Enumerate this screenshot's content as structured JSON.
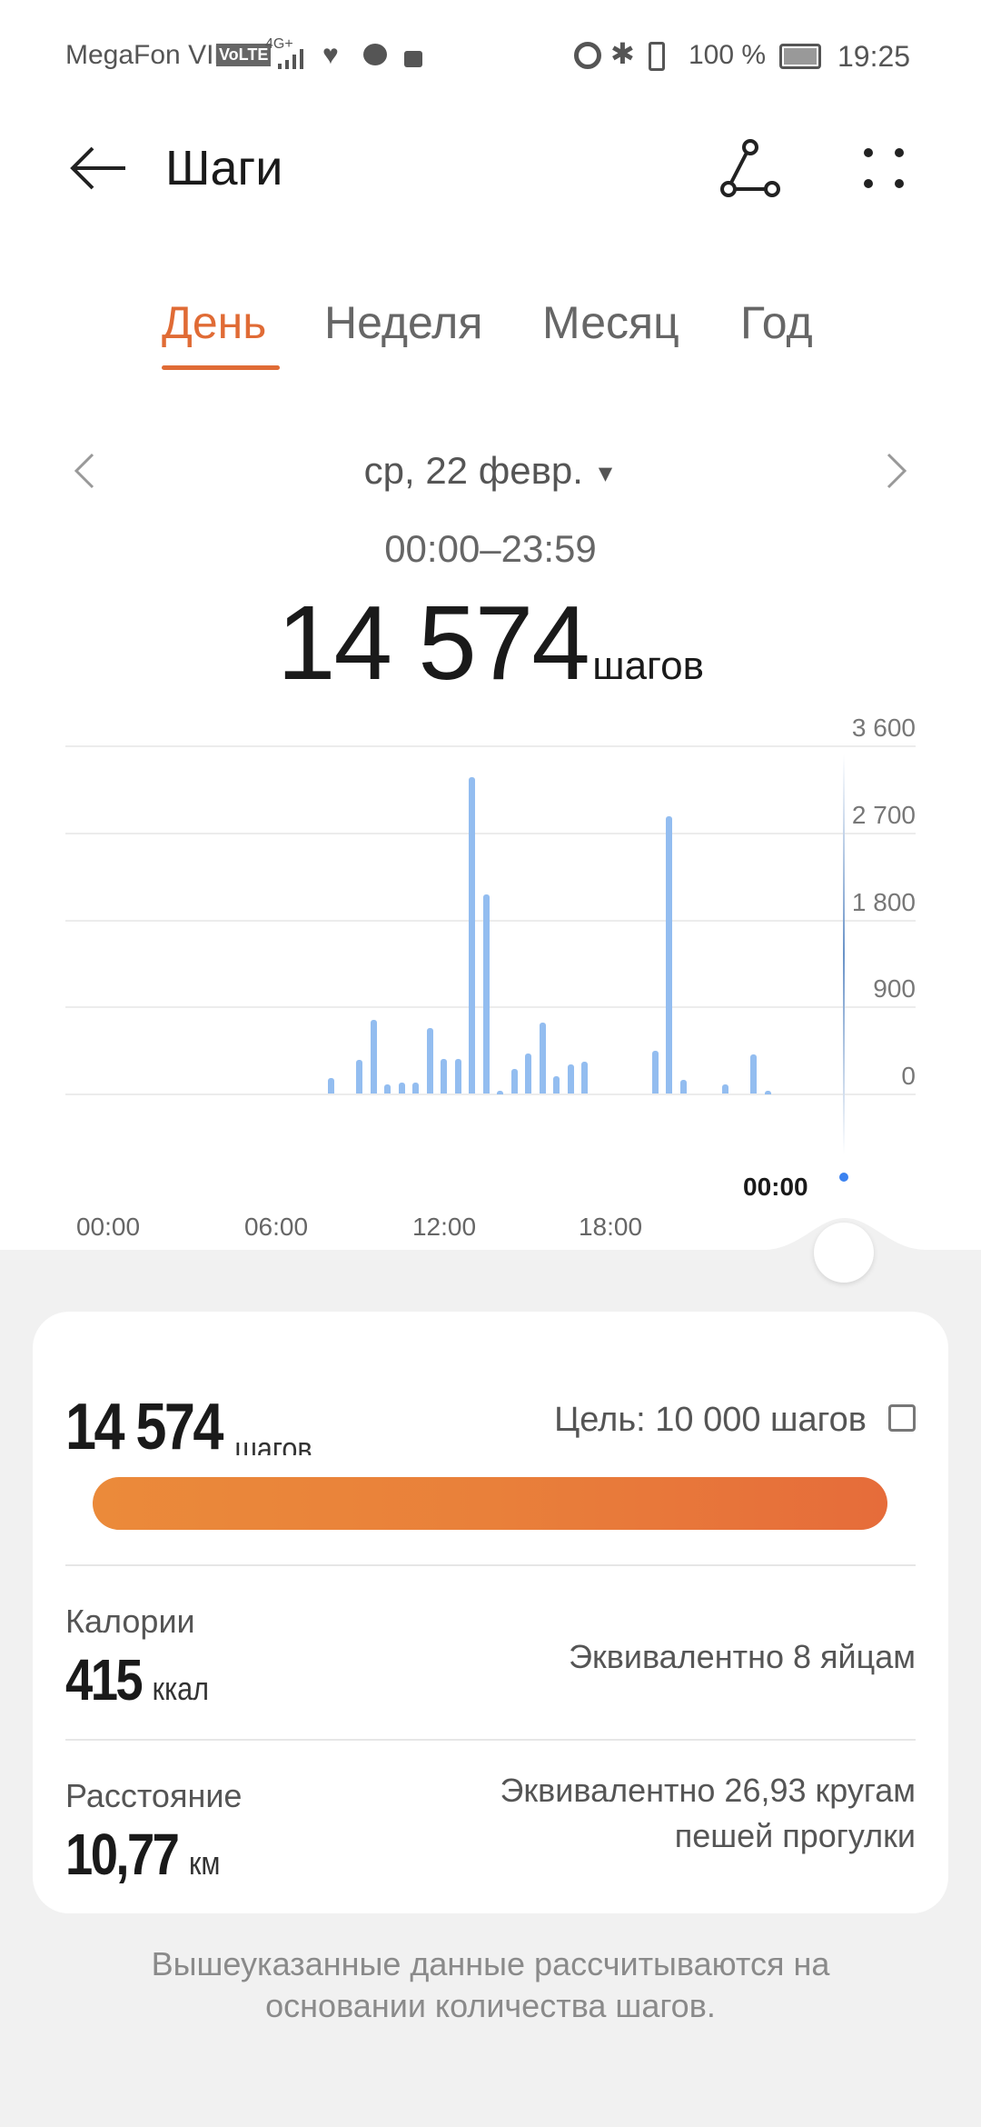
{
  "status_bar": {
    "carrier": "MegaFon VIP",
    "volte": "VoLTE",
    "network": "4G+",
    "battery": "100 %",
    "time": "19:25",
    "icons": [
      "signal-icon",
      "heart-icon",
      "chat-icon",
      "unlock-icon",
      "alarm-icon",
      "bluetooth-icon",
      "vibrate-icon",
      "battery-icon"
    ]
  },
  "header": {
    "title": "Шаги",
    "back_icon": "arrow-left-icon",
    "share_icon": "share-icon",
    "more_icon": "more-icon"
  },
  "tabs": [
    {
      "label": "День",
      "active": true
    },
    {
      "label": "Неделя"
    },
    {
      "label": "Месяц"
    },
    {
      "label": "Год"
    }
  ],
  "accent": "#e06b35",
  "date_nav": {
    "date": "ср, 22 февр.",
    "range": "00:00–23:59"
  },
  "summary": {
    "steps": "14 574",
    "unit": "шагов"
  },
  "chart_data": {
    "type": "bar",
    "x": [
      "07:30",
      "08:30",
      "09:00",
      "09:30",
      "10:00",
      "10:30",
      "11:00",
      "11:30",
      "12:00",
      "12:30",
      "13:00",
      "13:30",
      "14:00",
      "14:30",
      "15:00",
      "15:30",
      "16:00",
      "16:30",
      "19:00",
      "19:30",
      "20:00",
      "21:30",
      "22:30",
      "23:00"
    ],
    "values": [
      160,
      350,
      760,
      90,
      117,
      117,
      675,
      360,
      360,
      3270,
      2063,
      25,
      250,
      415,
      735,
      175,
      300,
      325,
      445,
      2870,
      140,
      90,
      400,
      25
    ],
    "ylim": [
      0,
      3600
    ],
    "y_ticks": [
      "3 600",
      "2 700",
      "1 800",
      "900",
      "0"
    ],
    "x_ticks": [
      "00:00",
      "06:00",
      "12:00",
      "18:00"
    ],
    "cursor_label": "00:00",
    "bar_color": "#93bdf0",
    "grid": true
  },
  "card": {
    "steps": "14 574",
    "steps_unit": "шагов",
    "goal": "Цель: 10 000 шагов",
    "goal_progress_percent": 100,
    "calories_label": "Калории",
    "calories": "415",
    "calories_unit": "ккал",
    "calories_equiv": "Эквивалентно 8 яйцам",
    "distance_label": "Расстояние",
    "distance": "10,77",
    "distance_unit": "км",
    "distance_equiv_1": "Эквивалентно 26,93 кругам",
    "distance_equiv_2": "пешей прогулки"
  },
  "note": {
    "line1": "Вышеуказанные данные рассчитываются на",
    "line2": "основании количества шагов."
  }
}
